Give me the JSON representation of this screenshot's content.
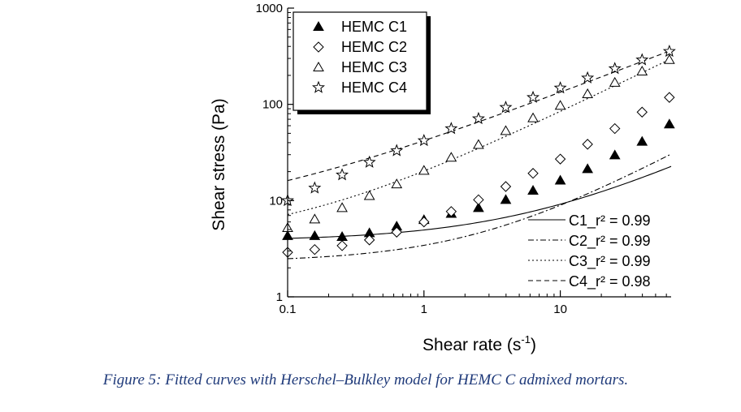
{
  "chart_data": {
    "type": "scatter",
    "xlabel_main": "Shear rate (s",
    "xlabel_sup": "-1",
    "xlabel_end": ")",
    "ylabel": "Shear stress (Pa)",
    "xscale": "log",
    "yscale": "log",
    "xlim": [
      0.1,
      65
    ],
    "ylim": [
      1,
      1000
    ],
    "x_ticks": [
      {
        "value": 0.1,
        "label": "0.1"
      },
      {
        "value": 1,
        "label": "1"
      },
      {
        "value": 10,
        "label": "10"
      }
    ],
    "y_ticks": [
      {
        "value": 1,
        "label": "1"
      },
      {
        "value": 10,
        "label": "10"
      },
      {
        "value": 100,
        "label": "100"
      },
      {
        "value": 1000,
        "label": "1000"
      }
    ],
    "x": [
      0.1,
      0.158,
      0.251,
      0.398,
      0.631,
      1.0,
      1.585,
      2.512,
      3.981,
      6.31,
      10.0,
      15.85,
      25.12,
      39.81,
      63.1
    ],
    "series": [
      {
        "name": "HEMC C1",
        "marker": "filled-triangle",
        "values": [
          4.3,
          4.3,
          4.2,
          4.6,
          5.4,
          6.3,
          7.3,
          8.4,
          10.2,
          12.7,
          16.2,
          21.3,
          29.6,
          41.0,
          62.0
        ]
      },
      {
        "name": "HEMC C2",
        "marker": "open-diamond",
        "values": [
          2.9,
          3.1,
          3.4,
          3.9,
          4.7,
          6.0,
          7.7,
          10.2,
          14.0,
          19.2,
          27.0,
          38.5,
          56.0,
          83.0,
          118.0
        ]
      },
      {
        "name": "HEMC C3",
        "marker": "open-triangle",
        "values": [
          5.2,
          6.4,
          8.4,
          11.2,
          14.8,
          20.5,
          28.0,
          38.0,
          53.0,
          72.0,
          97.0,
          128.0,
          168.0,
          220.0,
          290.0
        ]
      },
      {
        "name": "HEMC C4",
        "marker": "open-star",
        "values": [
          10.0,
          13.5,
          18.5,
          25.0,
          33.0,
          42.0,
          56.0,
          71.0,
          93.0,
          118.0,
          148.0,
          188.0,
          235.0,
          290.0,
          355.0
        ]
      }
    ],
    "fits": [
      {
        "label": "C1_r² = 0.99",
        "dash": "solid",
        "y0": 3.8,
        "k": 1.15,
        "n": 0.67
      },
      {
        "label": "C2_r² = 0.99",
        "dash": "dashdot",
        "y0": 2.3,
        "k": 1.13,
        "n": 0.77
      },
      {
        "label": "C3_r² = 0.99",
        "dash": "dotted",
        "y0": 3.8,
        "k": 16.5,
        "n": 0.69
      },
      {
        "label": "C4_r² = 0.98",
        "dash": "dashed",
        "y0": 6.0,
        "k": 36.0,
        "n": 0.55
      }
    ]
  },
  "caption": "Figure 5: Fitted curves with Herschel–Bulkley model for HEMC C admixed mortars."
}
